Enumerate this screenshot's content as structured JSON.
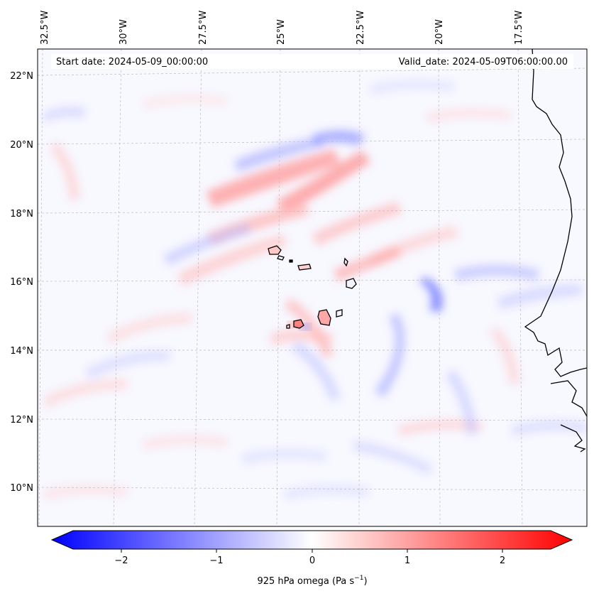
{
  "map": {
    "start_date": "Start date: 2024-05-09_00:00:00",
    "valid_date": "Valid_date: 2024-05-09T06:00:00.00",
    "lon_labels": [
      "32.5°W",
      "30°W",
      "27.5°W",
      "25°W",
      "22.5°W",
      "20°W",
      "17.5°W"
    ],
    "lat_labels": [
      "22°N",
      "20°N",
      "18°N",
      "16°N",
      "14°N",
      "12°N",
      "10°N"
    ],
    "extent": {
      "lon_min": -32.5,
      "lon_max": -15.8,
      "lat_min": 8.8,
      "lat_max": 22.8
    },
    "field": "925 hPa omega",
    "colormap": "bwr",
    "grid": true
  },
  "colorbar": {
    "label_prefix": "925 hPa omega (Pa s",
    "label_exp": "−1",
    "label_suffix": ")",
    "ticks": [
      "−2",
      "−1",
      "0",
      "1",
      "2"
    ],
    "range": [
      -2.6,
      2.6
    ],
    "extend": "both",
    "colors": {
      "min": "#0000ff",
      "mid": "#ffffff",
      "max": "#ff0000"
    }
  }
}
